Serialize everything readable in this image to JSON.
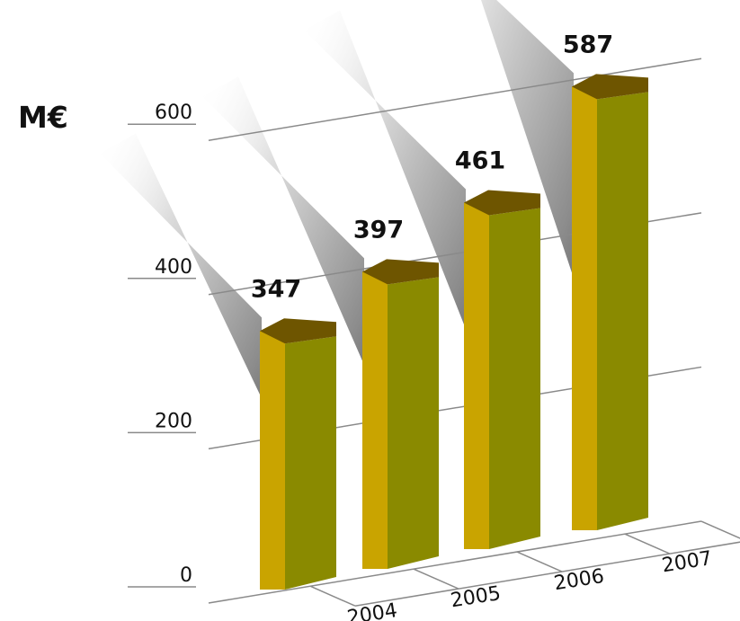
{
  "chart_data": {
    "type": "bar",
    "categories": [
      "2004",
      "2005",
      "2006",
      "2007"
    ],
    "values": [
      347,
      397,
      461,
      587
    ],
    "unit_label": "M€",
    "yticks": [
      0,
      200,
      400,
      600
    ],
    "ylim": [
      0,
      600
    ],
    "grid": true,
    "style": "3d",
    "colors": {
      "bar_front": "#c9a400",
      "bar_side": "#8a8a00",
      "bar_top": "#6e5500",
      "grid": "#8a8a8a"
    }
  }
}
